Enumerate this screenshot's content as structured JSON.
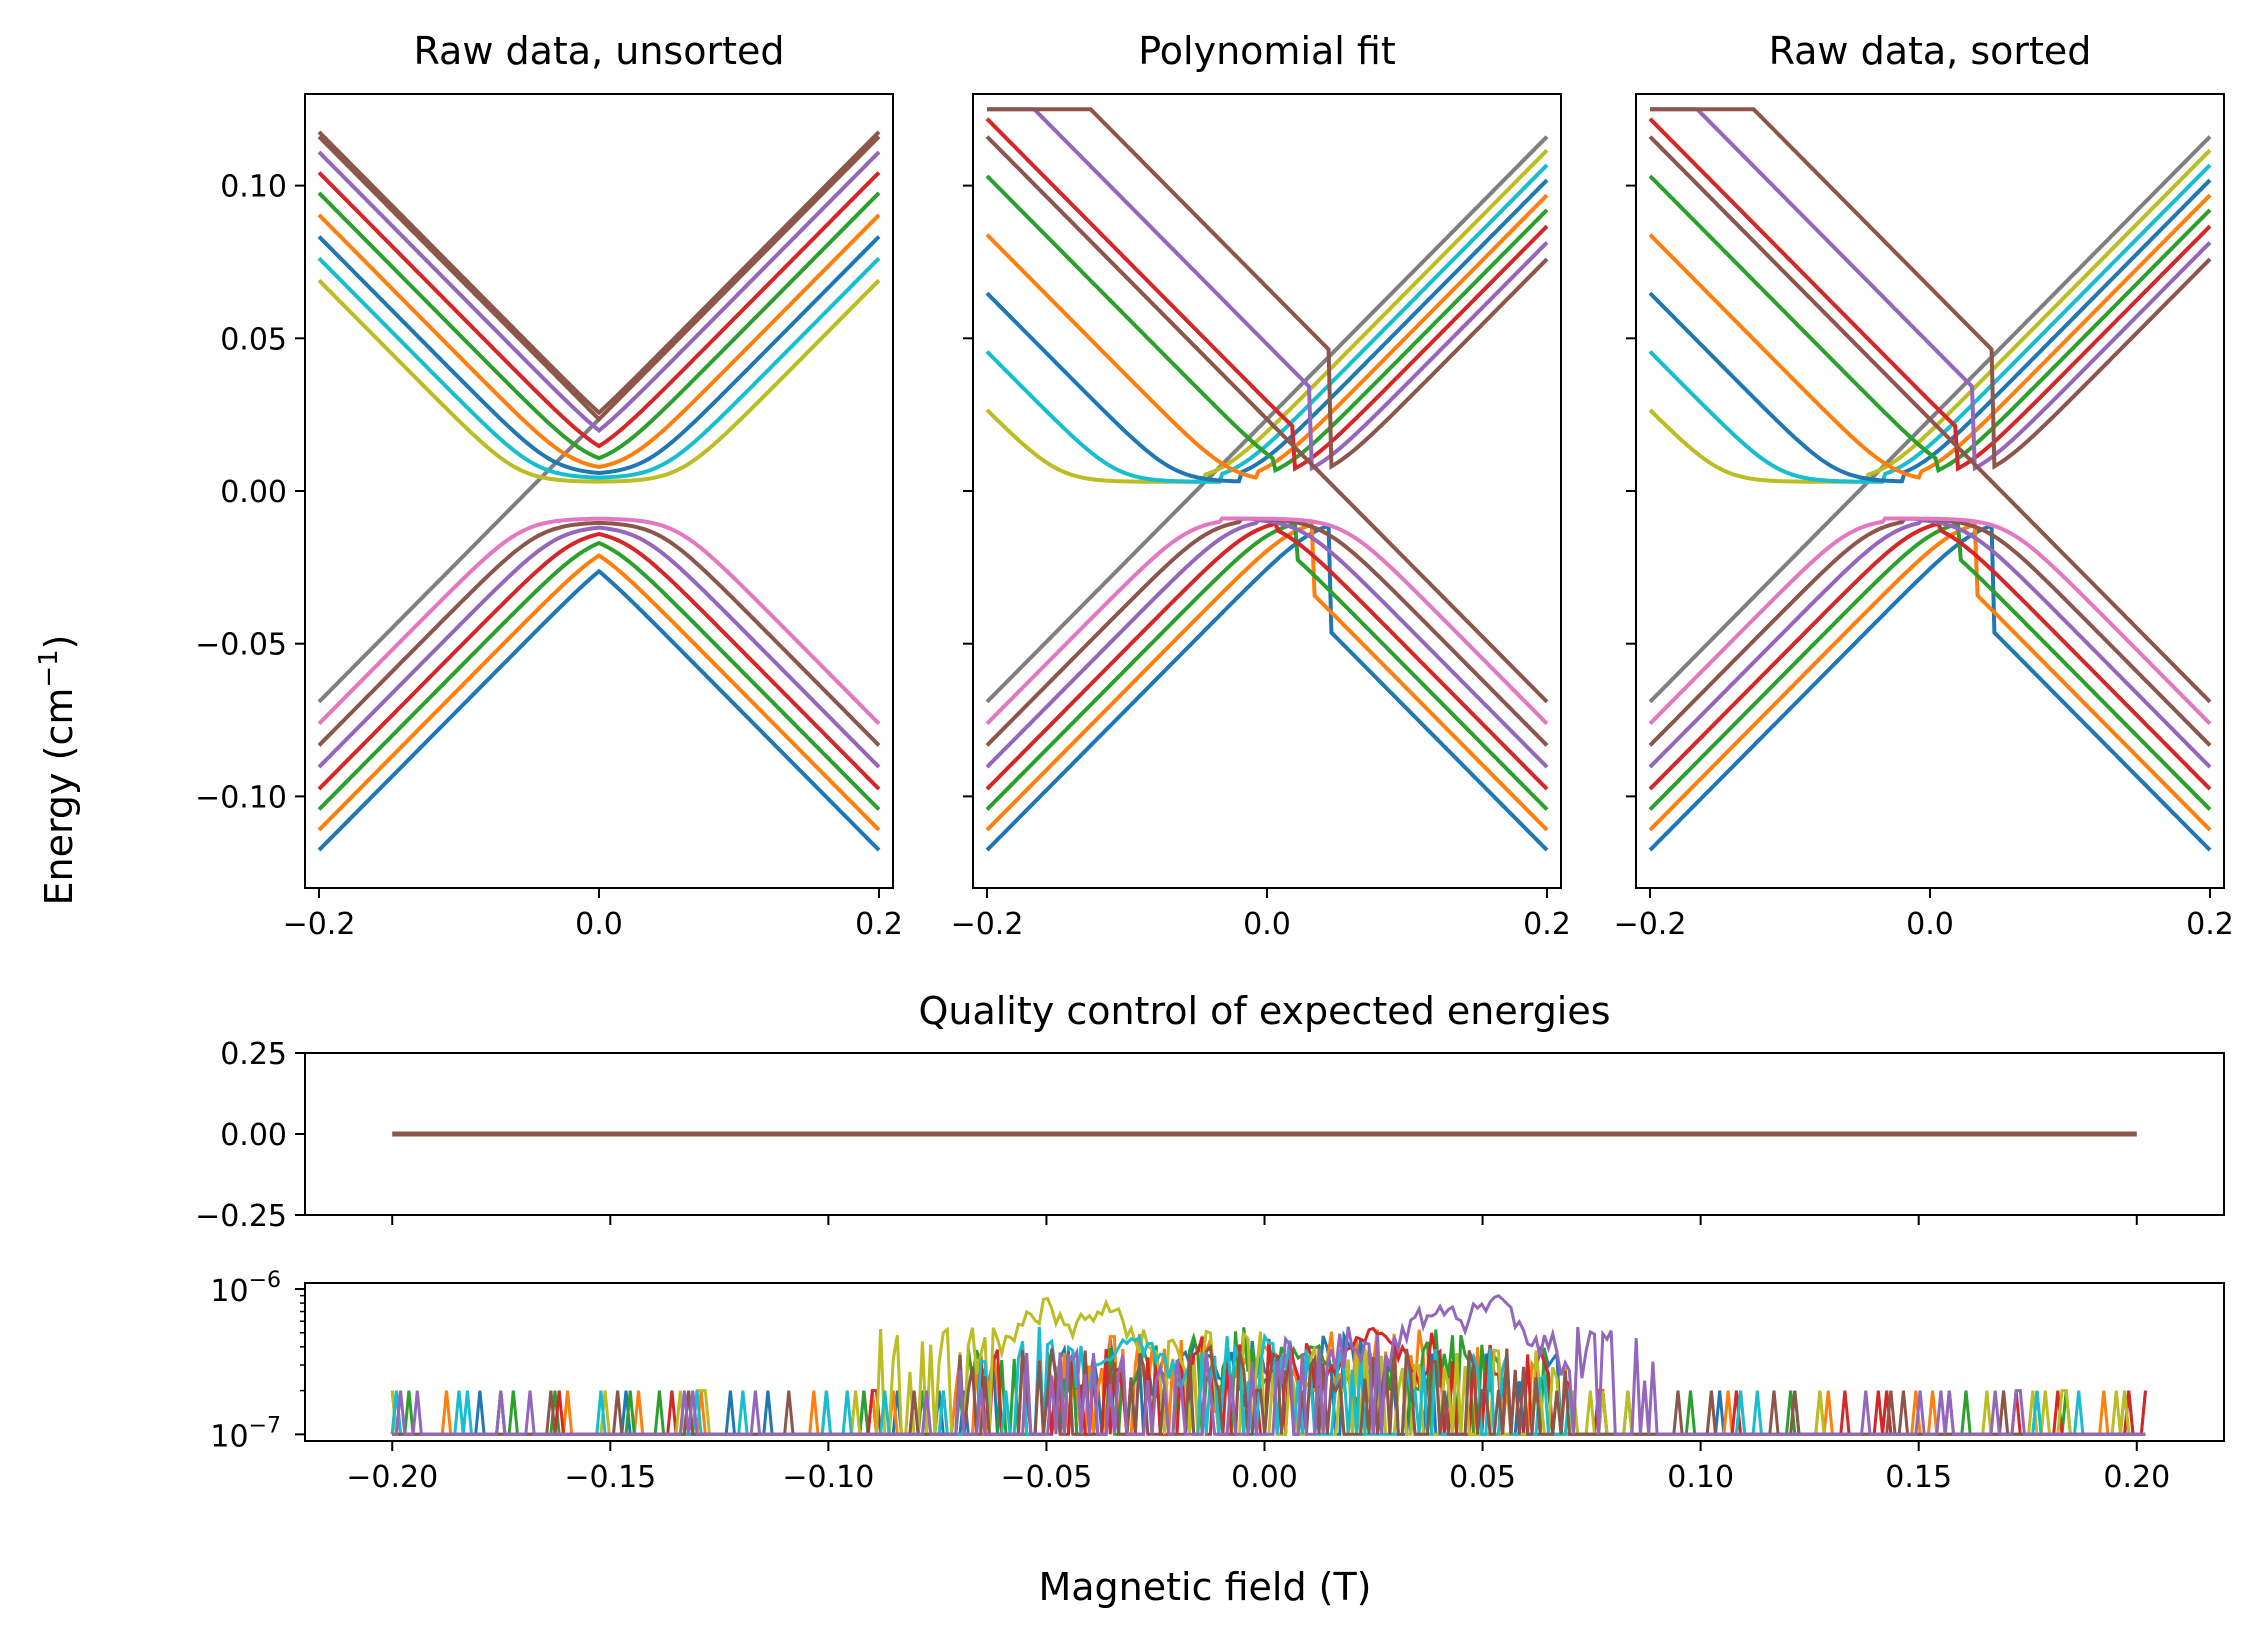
{
  "figure": {
    "ylabel": "Energy (cm",
    "ylabel_sup": "−1",
    "ylabel_end": ")",
    "xlabel": "Magnetic field (T)"
  },
  "colors": [
    "#1f77b4",
    "#ff7f0e",
    "#2ca02c",
    "#d62728",
    "#9467bd",
    "#8c564b",
    "#e377c2",
    "#7f7f7f",
    "#bcbd22",
    "#17becf"
  ],
  "chart_data": [
    {
      "type": "line",
      "title": "Raw data, unsorted",
      "xlim": [
        -0.21,
        0.21
      ],
      "ylim": [
        -0.13,
        0.13
      ],
      "xticks": [
        -0.2,
        0.0,
        0.2
      ],
      "xtick_labels": [
        "−0.2",
        "0.0",
        "0.2"
      ],
      "yticks": [
        0.1,
        0.05,
        0.0,
        -0.05,
        -0.1
      ],
      "ytick_labels": [
        "0.10",
        "0.05",
        "0.00",
        "−0.05",
        "−0.10"
      ],
      "model": {
        "description": "Anticrossing energy levels: 8 states slope +/-0.4627 per T with offsets, avoided crossings near 0",
        "slope": 0.4627,
        "offsets": [
          0.025,
          0.0217,
          0.0184,
          0.0151,
          0.0118,
          0.0085,
          0.0052,
          0.0019
        ],
        "gap": 0.003
      },
      "series": [
        {
          "color_index": 0,
          "x": [
            -0.2,
            0.0,
            0.2
          ],
          "y": [
            -0.1176,
            -0.025,
            -0.1176
          ],
          "branch": "lower-sorted"
        },
        {
          "color_index": 1,
          "x": [
            -0.2,
            0.0,
            0.2
          ],
          "y": [
            -0.111,
            -0.02,
            -0.111
          ],
          "branch": "lower-sorted"
        },
        {
          "color_index": 2,
          "x": [
            -0.2,
            0.0,
            0.2
          ],
          "y": [
            -0.1043,
            -0.017,
            -0.1043
          ],
          "branch": "lower-sorted"
        },
        {
          "color_index": 3,
          "x": [
            -0.2,
            0.0,
            0.2
          ],
          "y": [
            -0.0976,
            -0.014,
            -0.0976
          ],
          "branch": "lower-sorted"
        },
        {
          "color_index": 4,
          "x": [
            -0.2,
            0.0,
            0.2
          ],
          "y": [
            -0.0904,
            -0.0125,
            -0.0904
          ],
          "branch": "lower-sorted"
        },
        {
          "color_index": 5,
          "x": [
            -0.2,
            0.0,
            0.2
          ],
          "y": [
            -0.0833,
            -0.0115,
            -0.0833
          ],
          "branch": "lower-sorted"
        },
        {
          "color_index": 6,
          "x": [
            -0.2,
            0.0,
            0.2
          ],
          "y": [
            -0.0762,
            -0.01,
            -0.0762
          ],
          "branch": "lower-sorted"
        },
        {
          "color_index": 7,
          "x": [
            -0.2,
            0.0,
            0.2
          ],
          "y": [
            -0.0695,
            0.025,
            0.1176
          ],
          "branch": "gray-diagonal"
        },
        {
          "color_index": 8,
          "x": [
            -0.2,
            0.0,
            0.2
          ],
          "y": [
            0.0695,
            0.004,
            0.0695
          ],
          "branch": "upper-sorted"
        },
        {
          "color_index": 9,
          "x": [
            -0.2,
            0.0,
            0.2
          ],
          "y": [
            0.0762,
            0.006,
            0.0762
          ],
          "branch": "upper-sorted"
        },
        {
          "color_index": 1,
          "x": [
            -0.2,
            0.0,
            0.2
          ],
          "y": [
            0.0904,
            0.009,
            0.0904
          ],
          "branch": "upper-sorted"
        },
        {
          "color_index": 0,
          "x": [
            -0.2,
            0.0,
            0.2
          ],
          "y": [
            0.0833,
            0.0075,
            0.0833
          ],
          "branch": "upper-sorted"
        },
        {
          "color_index": 2,
          "x": [
            -0.2,
            0.0,
            0.2
          ],
          "y": [
            0.0976,
            0.011,
            0.0976
          ],
          "branch": "upper-sorted"
        },
        {
          "color_index": 3,
          "x": [
            -0.2,
            0.0,
            0.2
          ],
          "y": [
            0.1043,
            0.013,
            0.1043
          ],
          "branch": "upper-sorted"
        },
        {
          "color_index": 4,
          "x": [
            -0.2,
            0.0,
            0.2
          ],
          "y": [
            0.111,
            0.016,
            0.111
          ],
          "branch": "upper-sorted"
        },
        {
          "color_index": 5,
          "x": [
            -0.2,
            0.0,
            0.2
          ],
          "y": [
            0.1176,
            0.025,
            0.1176
          ],
          "branch": "upper-sorted"
        }
      ]
    },
    {
      "type": "line",
      "title": "Polynomial fit",
      "xlim": [
        -0.21,
        0.21
      ],
      "ylim": [
        -0.13,
        0.13
      ],
      "xticks": [
        -0.2,
        0.0,
        0.2
      ],
      "xtick_labels": [
        "−0.2",
        "0.0",
        "0.2"
      ],
      "yticks": [
        0.1,
        0.05,
        0.0,
        -0.05,
        -0.1
      ]
    },
    {
      "type": "line",
      "title": "Raw data, sorted",
      "xlim": [
        -0.21,
        0.21
      ],
      "ylim": [
        -0.13,
        0.13
      ],
      "xticks": [
        -0.2,
        0.0,
        0.2
      ],
      "xtick_labels": [
        "−0.2",
        "0.0",
        "0.2"
      ],
      "yticks": [
        0.1,
        0.05,
        0.0,
        -0.05,
        -0.1
      ]
    },
    {
      "type": "line",
      "title": "Quality control of expected energies",
      "xlim": [
        -0.22,
        0.22
      ],
      "ylim": [
        -0.25,
        0.25
      ],
      "yticks": [
        0.25,
        0.0,
        -0.25
      ],
      "ytick_labels": [
        "0.25",
        "0.00",
        "−0.25"
      ],
      "series": [
        {
          "color_index": 5,
          "x": [
            -0.2,
            0.2
          ],
          "y": [
            0.0,
            0.0
          ]
        }
      ]
    },
    {
      "type": "line",
      "yscale": "log",
      "xlim": [
        -0.22,
        0.22
      ],
      "ylim": [
        9e-08,
        1.1e-06
      ],
      "ytick_labels": [
        {
          "base": "10",
          "exp": "−6"
        },
        {
          "base": "10",
          "exp": "−7"
        }
      ],
      "xticks": [
        -0.2,
        -0.15,
        -0.1,
        -0.05,
        0.0,
        0.05,
        0.1,
        0.15,
        0.2
      ],
      "xtick_labels": [
        "−0.20",
        "−0.15",
        "−0.10",
        "−0.05",
        "0.00",
        "0.05",
        "0.10",
        "0.15",
        "0.20"
      ],
      "series_note": "noise traces near 1e-7 baseline with peaks up to ~9e-7 around x=±0.05",
      "peaks": [
        {
          "color_index": 8,
          "center": -0.05,
          "height": 9e-07
        },
        {
          "color_index": 8,
          "center": -0.037,
          "height": 9e-07
        },
        {
          "color_index": 9,
          "center": -0.03,
          "height": 5.5e-07
        },
        {
          "color_index": 0,
          "center": -0.015,
          "height": 4.5e-07
        },
        {
          "color_index": 1,
          "center": 0.0,
          "height": 4.5e-07
        },
        {
          "color_index": 2,
          "center": 0.01,
          "height": 5e-07
        },
        {
          "color_index": 3,
          "center": 0.025,
          "height": 6e-07
        },
        {
          "color_index": 4,
          "center": 0.04,
          "height": 9.5e-07
        },
        {
          "color_index": 4,
          "center": 0.052,
          "height": 1e-06
        }
      ]
    }
  ]
}
